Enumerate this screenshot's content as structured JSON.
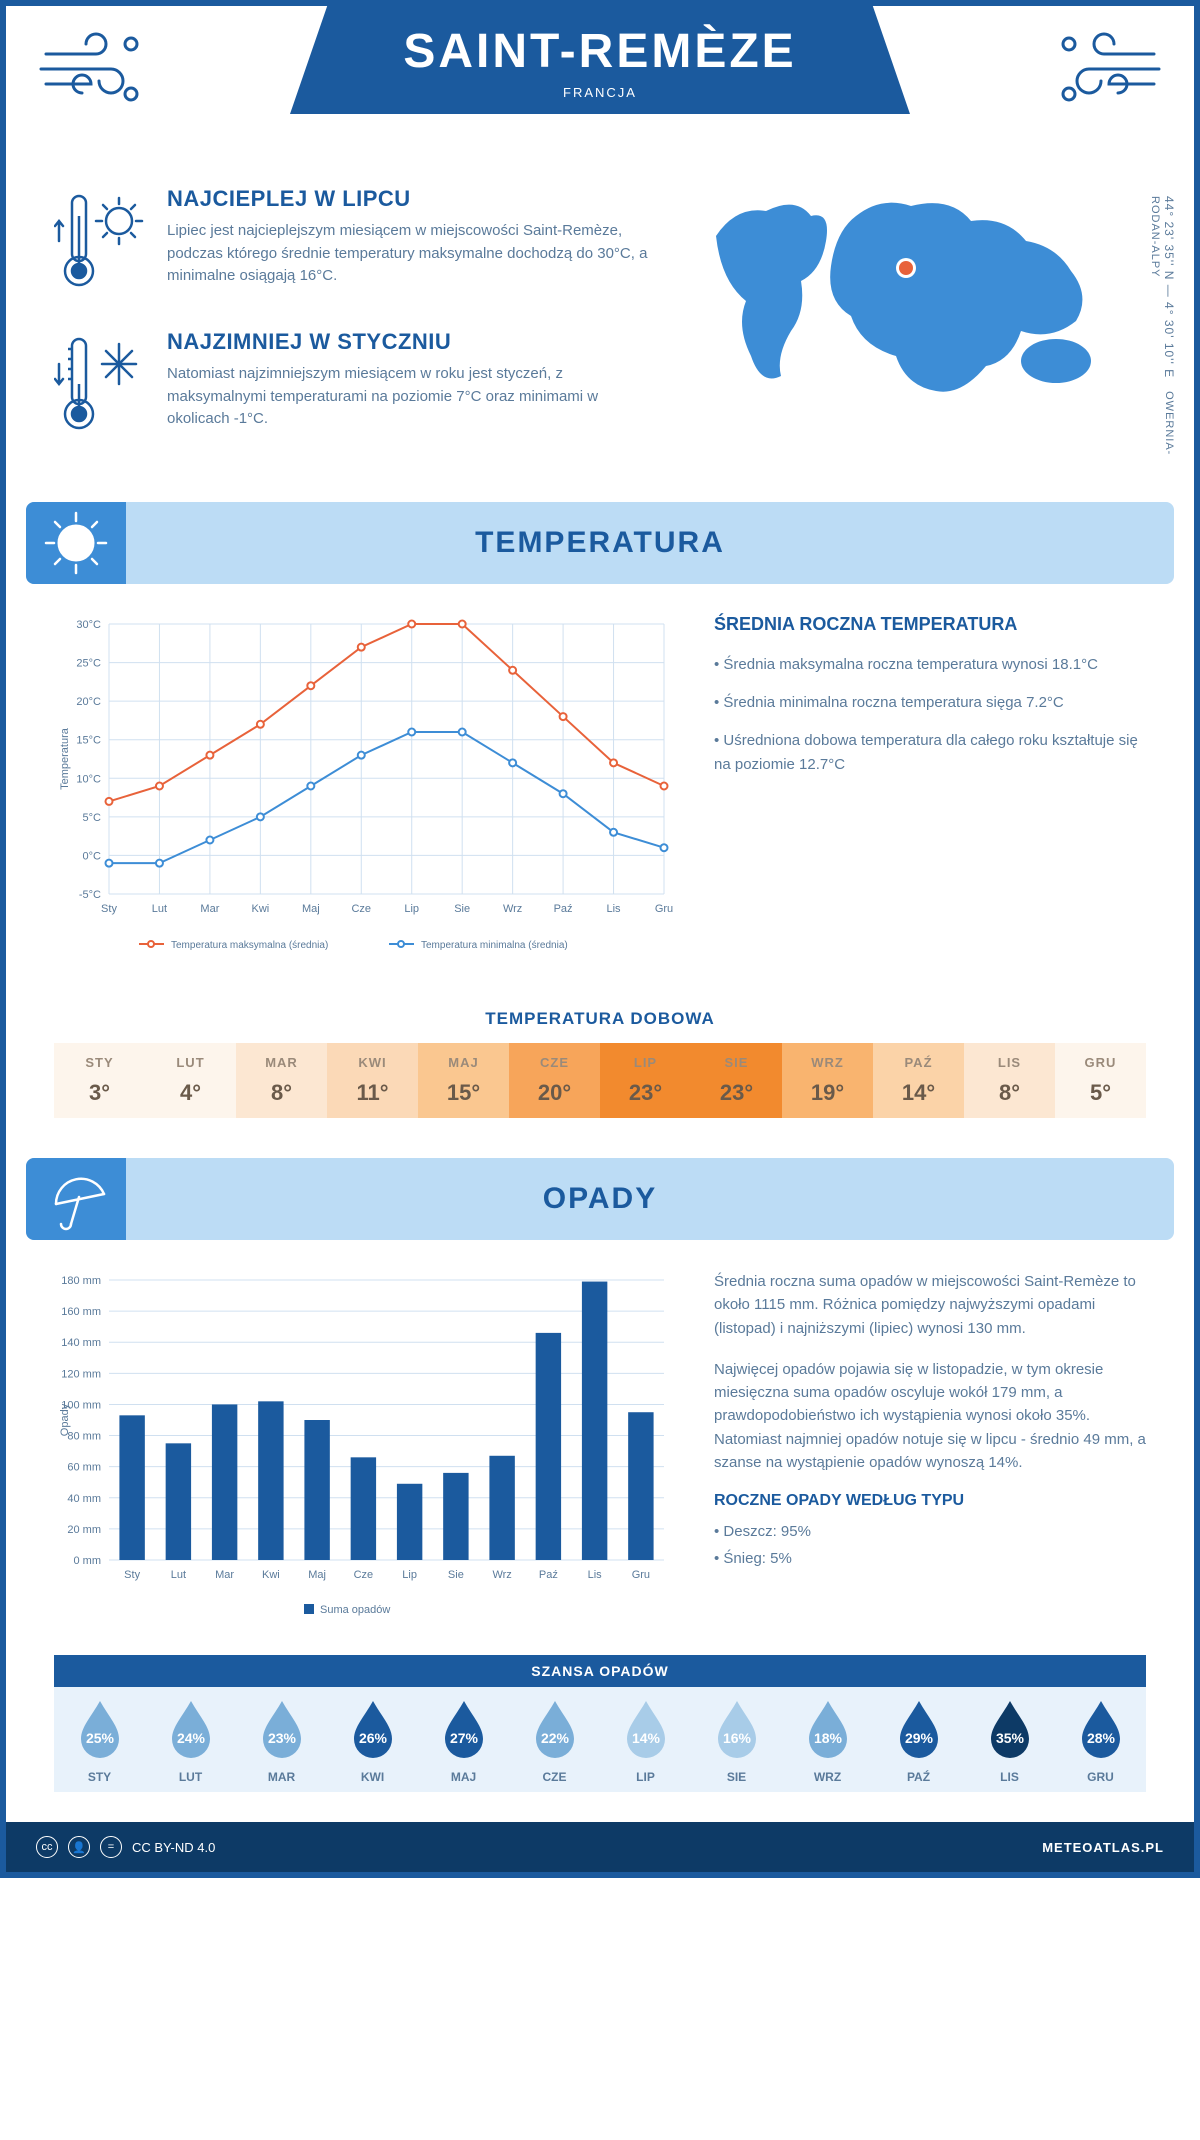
{
  "header": {
    "city": "SAINT-REMÈZE",
    "country": "FRANCJA"
  },
  "coords": "44° 23' 35'' N — 4° 30' 10'' E",
  "region": "OWERNIA-RODAN-ALPY",
  "intro": {
    "hot": {
      "title": "NAJCIEPLEJ W LIPCU",
      "text": "Lipiec jest najcieplejszym miesiącem w miejscowości Saint-Remèze, podczas którego średnie temperatury maksymalne dochodzą do 30°C, a minimalne osiągają 16°C."
    },
    "cold": {
      "title": "NAJZIMNIEJ W STYCZNIU",
      "text": "Natomiast najzimniejszym miesiącem w roku jest styczeń, z maksymalnymi temperaturami na poziomie 7°C oraz minimami w okolicach -1°C."
    }
  },
  "sections": {
    "temperature": "TEMPERATURA",
    "precipitation": "OPADY"
  },
  "tempChart": {
    "type": "line",
    "months": [
      "Sty",
      "Lut",
      "Mar",
      "Kwi",
      "Maj",
      "Cze",
      "Lip",
      "Sie",
      "Wrz",
      "Paź",
      "Lis",
      "Gru"
    ],
    "max": [
      7,
      9,
      13,
      17,
      22,
      27,
      30,
      30,
      24,
      18,
      12,
      9
    ],
    "min": [
      -1,
      -1,
      2,
      5,
      9,
      13,
      16,
      16,
      12,
      8,
      3,
      1
    ],
    "max_color": "#e8623a",
    "min_color": "#3d8dd6",
    "ylim": [
      -5,
      30
    ],
    "ytick_step": 5,
    "ylabel": "Temperatura",
    "grid_color": "#d0e0f0",
    "legend": {
      "max": "Temperatura maksymalna (średnia)",
      "min": "Temperatura minimalna (średnia)"
    }
  },
  "tempNotes": {
    "title": "ŚREDNIA ROCZNA TEMPERATURA",
    "bullets": [
      "• Średnia maksymalna roczna temperatura wynosi 18.1°C",
      "• Średnia minimalna roczna temperatura sięga 7.2°C",
      "• Uśredniona dobowa temperatura dla całego roku kształtuje się na poziomie 12.7°C"
    ]
  },
  "dailyTemp": {
    "title": "TEMPERATURA DOBOWA",
    "months": [
      "STY",
      "LUT",
      "MAR",
      "KWI",
      "MAJ",
      "CZE",
      "LIP",
      "SIE",
      "WRZ",
      "PAŹ",
      "LIS",
      "GRU"
    ],
    "values": [
      "3°",
      "4°",
      "8°",
      "11°",
      "15°",
      "20°",
      "23°",
      "23°",
      "19°",
      "14°",
      "8°",
      "5°"
    ],
    "colors": [
      "#fdf5ec",
      "#fdf5ec",
      "#fce7d2",
      "#fbd9b7",
      "#fac790",
      "#f7a55a",
      "#f28a2e",
      "#f28a2e",
      "#f9b46f",
      "#fbd3a8",
      "#fce7d2",
      "#fdf5ec"
    ]
  },
  "rainChart": {
    "type": "bar",
    "months": [
      "Sty",
      "Lut",
      "Mar",
      "Kwi",
      "Maj",
      "Cze",
      "Lip",
      "Sie",
      "Wrz",
      "Paź",
      "Lis",
      "Gru"
    ],
    "values": [
      93,
      75,
      100,
      102,
      90,
      66,
      49,
      56,
      67,
      146,
      179,
      95
    ],
    "bar_color": "#1b5a9e",
    "ylim": [
      0,
      180
    ],
    "ytick_step": 20,
    "ylabel": "Opady",
    "grid_color": "#d0e0f0",
    "legend_label": "Suma opadów"
  },
  "rainText": {
    "p1": "Średnia roczna suma opadów w miejscowości Saint-Remèze to około 1115 mm. Różnica pomiędzy najwyższymi opadami (listopad) i najniższymi (lipiec) wynosi 130 mm.",
    "p2": "Najwięcej opadów pojawia się w listopadzie, w tym okresie miesięczna suma opadów oscyluje wokół 179 mm, a prawdopodobieństwo ich wystąpienia wynosi około 35%. Natomiast najmniej opadów notuje się w lipcu - średnio 49 mm, a szanse na wystąpienie opadów wynoszą 14%.",
    "typeTitle": "ROCZNE OPADY WEDŁUG TYPU",
    "types": [
      "• Deszcz: 95%",
      "• Śnieg: 5%"
    ]
  },
  "chance": {
    "title": "SZANSA OPADÓW",
    "months": [
      "STY",
      "LUT",
      "MAR",
      "KWI",
      "MAJ",
      "CZE",
      "LIP",
      "SIE",
      "WRZ",
      "PAŹ",
      "LIS",
      "GRU"
    ],
    "values": [
      "25%",
      "24%",
      "23%",
      "26%",
      "27%",
      "22%",
      "14%",
      "16%",
      "18%",
      "29%",
      "35%",
      "28%"
    ],
    "drop_colors": [
      "#7aaed8",
      "#7aaed8",
      "#7aaed8",
      "#1b5a9e",
      "#1b5a9e",
      "#7aaed8",
      "#a8cce8",
      "#a8cce8",
      "#7aaed8",
      "#1b5a9e",
      "#0d3a66",
      "#1b5a9e"
    ]
  },
  "footer": {
    "license": "CC BY-ND 4.0",
    "site": "METEOATLAS.PL"
  }
}
